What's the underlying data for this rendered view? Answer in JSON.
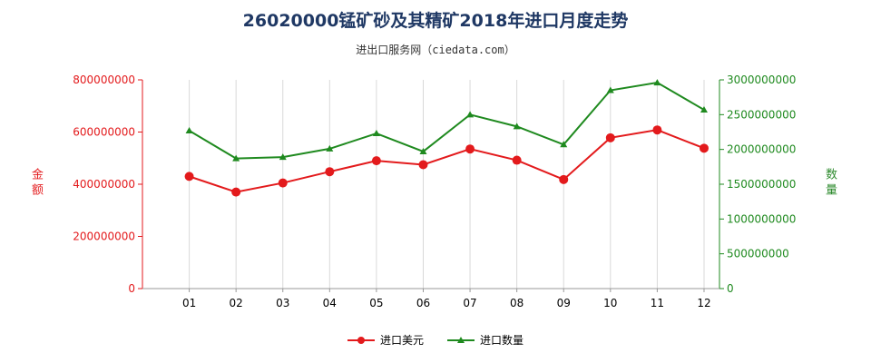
{
  "title": "26020000锰矿砂及其精矿2018年进口月度走势",
  "subtitle": "进出口服务网（ciedata.com）",
  "left_axis_label": "金额",
  "right_axis_label": "数量",
  "colors": {
    "amount": "#e31a1c",
    "quantity": "#1f8a1f",
    "title": "#1f3864"
  },
  "legend": {
    "amount": "进口美元",
    "quantity": "进口数量"
  },
  "chart_data": {
    "type": "line",
    "categories": [
      "01",
      "02",
      "03",
      "04",
      "05",
      "06",
      "07",
      "08",
      "09",
      "10",
      "11",
      "12"
    ],
    "series": [
      {
        "name": "进口美元",
        "axis": "left",
        "values": [
          430000000,
          370000000,
          405000000,
          448000000,
          490000000,
          475000000,
          535000000,
          492000000,
          418000000,
          578000000,
          608000000,
          538000000
        ]
      },
      {
        "name": "进口数量",
        "axis": "right",
        "values": [
          2270000000,
          1870000000,
          1890000000,
          2010000000,
          2230000000,
          1970000000,
          2500000000,
          2330000000,
          2070000000,
          2850000000,
          2960000000,
          2570000000
        ]
      }
    ],
    "ylim_left": [
      0,
      800000000
    ],
    "yticks_left": [
      0,
      200000000,
      400000000,
      600000000,
      800000000
    ],
    "ylim_right": [
      0,
      3000000000
    ],
    "yticks_right": [
      0,
      500000000,
      1000000000,
      1500000000,
      2000000000,
      2500000000,
      3000000000
    ],
    "grid": "vertical"
  }
}
